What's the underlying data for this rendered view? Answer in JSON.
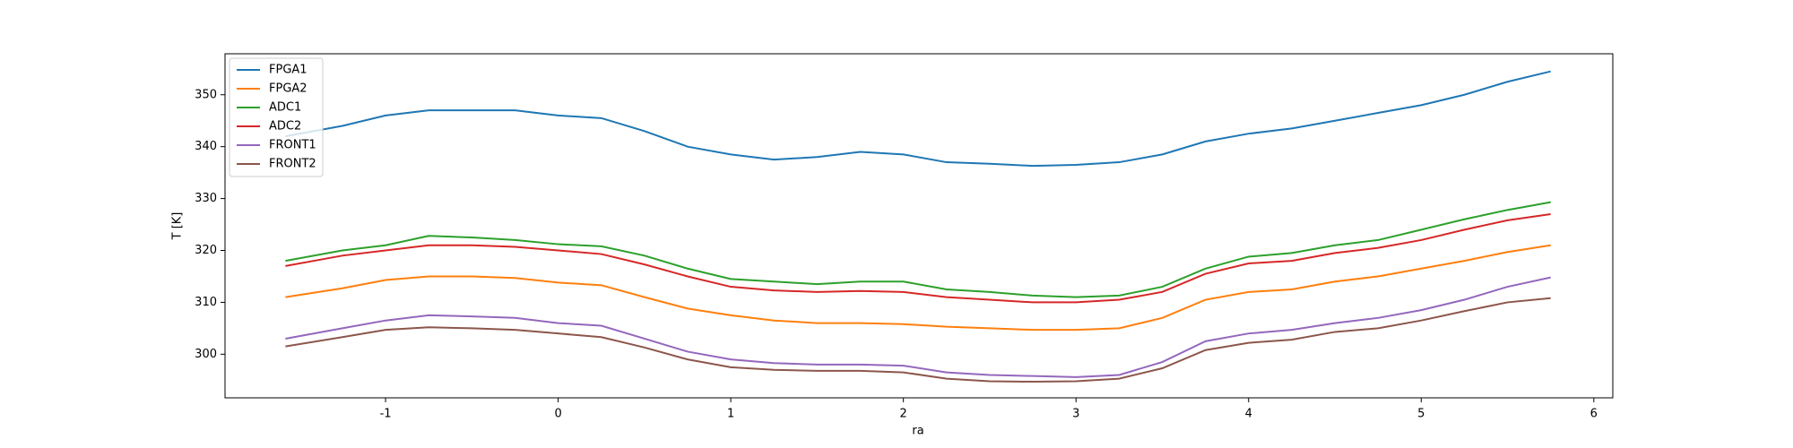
{
  "chart_data": {
    "type": "line",
    "x_label": "ra",
    "y_label": "T [K]",
    "x": [
      -1.58,
      -1.25,
      -1,
      -0.75,
      -0.5,
      -0.25,
      0,
      0.25,
      0.5,
      0.75,
      1,
      1.25,
      1.5,
      1.75,
      2,
      2.25,
      2.5,
      2.75,
      3,
      3.25,
      3.5,
      3.75,
      4,
      4.25,
      4.5,
      4.75,
      5,
      5.25,
      5.5,
      5.75
    ],
    "series": [
      {
        "name": "FPGA1",
        "color": "#1f77b4",
        "values": [
          342,
          344,
          346,
          347,
          347,
          347,
          346,
          345.5,
          343,
          340,
          338.5,
          337.5,
          338,
          339,
          338.5,
          337,
          336.7,
          336.3,
          336.5,
          337,
          338.5,
          341,
          342.5,
          343.5,
          345,
          346.5,
          348,
          350,
          352.5,
          354.5
        ]
      },
      {
        "name": "FPGA2",
        "color": "#ff7f0e",
        "values": [
          311,
          312.7,
          314.3,
          315,
          315,
          314.7,
          313.8,
          313.3,
          311,
          308.8,
          307.5,
          306.5,
          306,
          306,
          305.8,
          305.3,
          305,
          304.7,
          304.7,
          305,
          307,
          310.5,
          312,
          312.5,
          314,
          315,
          316.5,
          318,
          319.7,
          321
        ]
      },
      {
        "name": "ADC1",
        "color": "#2ca02c",
        "values": [
          318,
          320,
          321,
          322.8,
          322.5,
          322,
          321.2,
          320.8,
          319,
          316.5,
          314.5,
          314,
          313.5,
          314,
          314,
          312.5,
          312,
          311.3,
          311,
          311.3,
          313,
          316.5,
          318.8,
          319.5,
          321,
          322,
          324,
          326,
          327.8,
          329.3
        ]
      },
      {
        "name": "ADC2",
        "color": "#d62728",
        "values": [
          317,
          319,
          320,
          321,
          321,
          320.7,
          320,
          319.3,
          317.3,
          315,
          313,
          312.3,
          312,
          312.2,
          312,
          311,
          310.5,
          310,
          310,
          310.5,
          312,
          315.5,
          317.5,
          318,
          319.5,
          320.5,
          322,
          324,
          325.8,
          327
        ]
      },
      {
        "name": "FRONT1",
        "color": "#9467bd",
        "values": [
          303,
          305,
          306.5,
          307.5,
          307.3,
          307,
          306,
          305.5,
          303,
          300.5,
          299,
          298.3,
          298,
          298,
          297.8,
          296.5,
          296,
          295.8,
          295.6,
          296,
          298.5,
          302.5,
          304,
          304.7,
          306,
          307,
          308.5,
          310.5,
          313,
          314.8
        ]
      },
      {
        "name": "FRONT2",
        "color": "#8c564b",
        "values": [
          301.5,
          303.3,
          304.7,
          305.2,
          305,
          304.7,
          304,
          303.3,
          301.3,
          299,
          297.5,
          297,
          296.8,
          296.8,
          296.5,
          295.3,
          294.8,
          294.7,
          294.8,
          295.3,
          297.3,
          300.8,
          302.2,
          302.8,
          304.3,
          305,
          306.5,
          308.3,
          310,
          310.8
        ]
      }
    ],
    "xlim": [
      -1.93,
      6.11
    ],
    "xticks": [
      -1,
      0,
      1,
      2,
      3,
      4,
      5,
      6
    ],
    "ylim": [
      291.6,
      357.9
    ],
    "yticks": [
      300,
      310,
      320,
      330,
      340,
      350
    ],
    "legend": "upper-left"
  }
}
